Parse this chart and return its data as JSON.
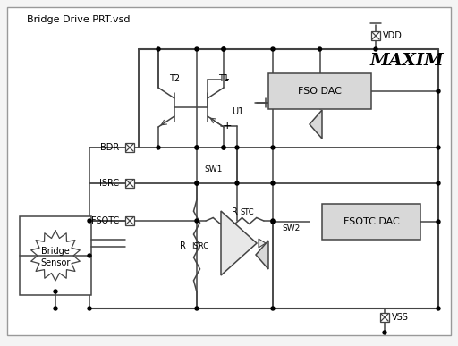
{
  "title": "Bridge Drive PRT.vsd",
  "bg_color": "#ffffff",
  "line_color": "#444444",
  "maxim_text": "MAXIM",
  "vdd_label": "VDD",
  "vss_label": "VSS",
  "bdr_label": "BDR",
  "isrc_label": "ISRC",
  "fsotc_label": "FSOTC",
  "sw1_label": "SW1",
  "sw2_label": "SW2",
  "rstc_label": "STC",
  "risrc_label": "ISRC",
  "t1_label": "T1",
  "t2_label": "T2",
  "u1_label": "U1",
  "fso_dac_label": "FSO DAC",
  "fsotc_dac_label": "FSOTC DAC",
  "bridge_label1": "Bridge",
  "bridge_label2": "Sensor",
  "fig_width": 5.12,
  "fig_height": 3.87,
  "dpi": 100
}
